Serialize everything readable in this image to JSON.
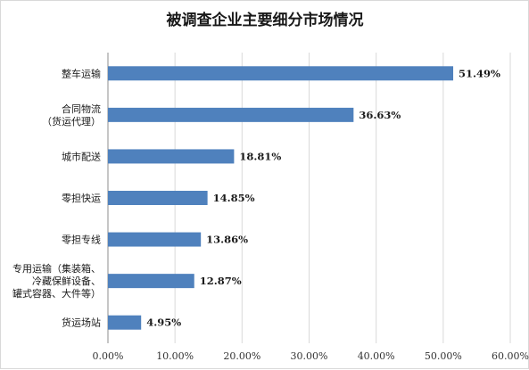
{
  "chart_data": {
    "type": "bar",
    "orientation": "horizontal",
    "title": "被调查企业主要细分市场情况",
    "xlabel": "",
    "ylabel": "",
    "categories": [
      [
        "整车运输"
      ],
      [
        "合同物流",
        "（货运代理）"
      ],
      [
        "城市配送"
      ],
      [
        "零担快运"
      ],
      [
        "零担专线"
      ],
      [
        "专用运输（集装箱、",
        "冷藏保鲜设备、",
        "罐式容器、大件等）"
      ],
      [
        "货运场站"
      ]
    ],
    "values": [
      51.49,
      36.63,
      18.81,
      14.85,
      13.86,
      12.87,
      4.95
    ],
    "value_labels": [
      "51.49%",
      "36.63%",
      "18.81%",
      "14.85%",
      "13.86%",
      "12.87%",
      "4.95%"
    ],
    "xlim": [
      0,
      60
    ],
    "x_ticks": [
      0,
      10,
      20,
      30,
      40,
      50,
      60
    ],
    "x_tick_labels": [
      "0.00%",
      "10.00%",
      "20.00%",
      "30.00%",
      "40.00%",
      "50.00%",
      "60.00%"
    ],
    "grid": "vertical",
    "legend": "none",
    "bar_color": "#4f81bd"
  }
}
